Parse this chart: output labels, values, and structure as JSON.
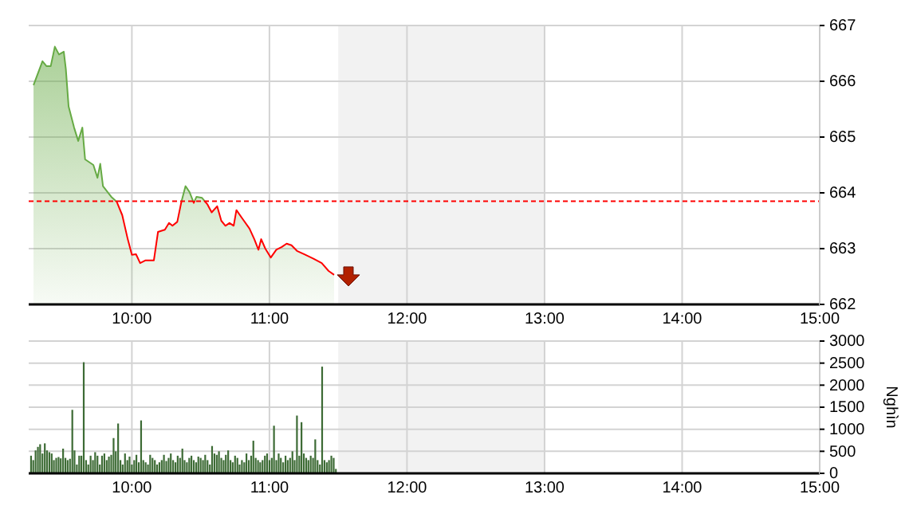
{
  "chart_data": [
    {
      "type": "area",
      "x": [
        9.285,
        9.35,
        9.38,
        9.41,
        9.44,
        9.47,
        9.505,
        9.52,
        9.54,
        9.58,
        9.61,
        9.64,
        9.66,
        9.72,
        9.75,
        9.77,
        9.79,
        9.85,
        9.89,
        9.93,
        9.97,
        10.0,
        10.03,
        10.06,
        10.1,
        10.16,
        10.19,
        10.24,
        10.27,
        10.295,
        10.33,
        10.36,
        10.39,
        10.42,
        10.45,
        10.47,
        10.51,
        10.55,
        10.58,
        10.62,
        10.65,
        10.68,
        10.71,
        10.74,
        10.76,
        10.8,
        10.855,
        10.89,
        10.92,
        10.94,
        10.97,
        11.01,
        11.05,
        11.09,
        11.125,
        11.16,
        11.2,
        11.26,
        11.32,
        11.38,
        11.43,
        11.47
      ],
      "series": [
        {
          "color": "#66aa44",
          "values": [
            665.93,
            666.36,
            666.27,
            666.27,
            666.62,
            666.48,
            666.53,
            666.22,
            665.55,
            665.17,
            664.93,
            665.17,
            664.6,
            664.5,
            664.27,
            664.52,
            664.12,
            663.93,
            663.84,
            663.6,
            663.17,
            662.89,
            662.9,
            662.74,
            662.79,
            662.79,
            663.3,
            663.34,
            663.46,
            663.41,
            663.48,
            663.84,
            664.12,
            664.01,
            663.82,
            663.93,
            663.91,
            663.79,
            663.65,
            663.76,
            663.5,
            663.41,
            663.46,
            663.41,
            663.69,
            663.55,
            663.36,
            663.17,
            662.98,
            663.17,
            663.0,
            662.84,
            662.98,
            663.03,
            663.09,
            663.06,
            662.96,
            662.89,
            662.82,
            662.74,
            662.6,
            662.53
          ]
        }
      ],
      "xlim": [
        9.25,
        15
      ],
      "xticks": [
        {
          "value": 10,
          "label": "10:00"
        },
        {
          "value": 11,
          "label": "11:00"
        },
        {
          "value": 12,
          "label": "12:00"
        },
        {
          "value": 13,
          "label": "13:00"
        },
        {
          "value": 14,
          "label": "14:00"
        },
        {
          "value": 15,
          "label": "15:00"
        }
      ],
      "ylim": [
        662,
        667
      ],
      "yticks": [
        662,
        663,
        664,
        665,
        666,
        667
      ],
      "grid": true,
      "bands": [
        {
          "axis": "x",
          "from": 11.5,
          "to": 13,
          "color": "#f2f2f2"
        }
      ],
      "ref_lines": [
        {
          "axis": "y",
          "value": 663.85,
          "color": "#ff0000",
          "line_style": "dashed"
        }
      ]
    },
    {
      "type": "bar",
      "ylabel": "Nghìn",
      "color": "#3d6b35",
      "x": [
        9.267,
        9.283,
        9.3,
        9.317,
        9.333,
        9.35,
        9.367,
        9.383,
        9.4,
        9.417,
        9.433,
        9.45,
        9.467,
        9.483,
        9.5,
        9.517,
        9.533,
        9.55,
        9.567,
        9.583,
        9.6,
        9.617,
        9.633,
        9.65,
        9.667,
        9.683,
        9.7,
        9.717,
        9.733,
        9.75,
        9.767,
        9.783,
        9.8,
        9.817,
        9.833,
        9.85,
        9.867,
        9.883,
        9.9,
        9.917,
        9.933,
        9.95,
        9.967,
        9.983,
        10.0,
        10.017,
        10.033,
        10.05,
        10.067,
        10.083,
        10.1,
        10.117,
        10.133,
        10.15,
        10.167,
        10.183,
        10.2,
        10.217,
        10.233,
        10.25,
        10.267,
        10.283,
        10.3,
        10.317,
        10.333,
        10.35,
        10.367,
        10.383,
        10.4,
        10.417,
        10.433,
        10.45,
        10.467,
        10.483,
        10.5,
        10.517,
        10.533,
        10.55,
        10.567,
        10.583,
        10.6,
        10.617,
        10.633,
        10.65,
        10.667,
        10.683,
        10.7,
        10.717,
        10.733,
        10.75,
        10.767,
        10.783,
        10.8,
        10.817,
        10.833,
        10.85,
        10.867,
        10.883,
        10.9,
        10.917,
        10.933,
        10.95,
        10.967,
        10.983,
        11.0,
        11.017,
        11.033,
        11.05,
        11.067,
        11.083,
        11.1,
        11.117,
        11.133,
        11.15,
        11.167,
        11.183,
        11.2,
        11.217,
        11.233,
        11.25,
        11.267,
        11.283,
        11.3,
        11.317,
        11.333,
        11.35,
        11.367,
        11.383,
        11.4,
        11.417,
        11.433,
        11.45,
        11.467,
        11.483
      ],
      "values": [
        400,
        300,
        520,
        600,
        660,
        450,
        680,
        520,
        480,
        450,
        300,
        350,
        370,
        340,
        560,
        350,
        300,
        330,
        1440,
        520,
        200,
        400,
        400,
        2520,
        300,
        200,
        400,
        300,
        480,
        400,
        200,
        400,
        450,
        300,
        380,
        420,
        800,
        500,
        1130,
        300,
        200,
        450,
        300,
        380,
        200,
        300,
        420,
        250,
        1200,
        300,
        250,
        200,
        420,
        350,
        300,
        200,
        250,
        300,
        420,
        280,
        350,
        450,
        300,
        250,
        400,
        350,
        560,
        300,
        250,
        350,
        400,
        300,
        250,
        380,
        350,
        300,
        420,
        300,
        200,
        620,
        450,
        420,
        500,
        350,
        300,
        420,
        520,
        300,
        250,
        400,
        350,
        200,
        300,
        250,
        450,
        300,
        400,
        740,
        350,
        300,
        250,
        300,
        400,
        450,
        300,
        350,
        1080,
        300,
        450,
        350,
        250,
        400,
        300,
        350,
        500,
        300,
        1310,
        400,
        1160,
        450,
        350,
        300,
        400,
        350,
        770,
        300,
        200,
        2420,
        300,
        250,
        300,
        400,
        350,
        100
      ],
      "xlim": [
        9.25,
        15
      ],
      "xticks": [
        {
          "value": 10,
          "label": "10:00"
        },
        {
          "value": 11,
          "label": "11:00"
        },
        {
          "value": 12,
          "label": "12:00"
        },
        {
          "value": 13,
          "label": "13:00"
        },
        {
          "value": 14,
          "label": "14:00"
        },
        {
          "value": 15,
          "label": "15:00"
        }
      ],
      "ylim": [
        0,
        3000
      ],
      "yticks": [
        0,
        500,
        1000,
        1500,
        2000,
        2500,
        3000
      ],
      "grid": true,
      "bands": [
        {
          "axis": "x",
          "from": 11.5,
          "to": 13,
          "color": "#f2f2f2"
        }
      ]
    }
  ]
}
